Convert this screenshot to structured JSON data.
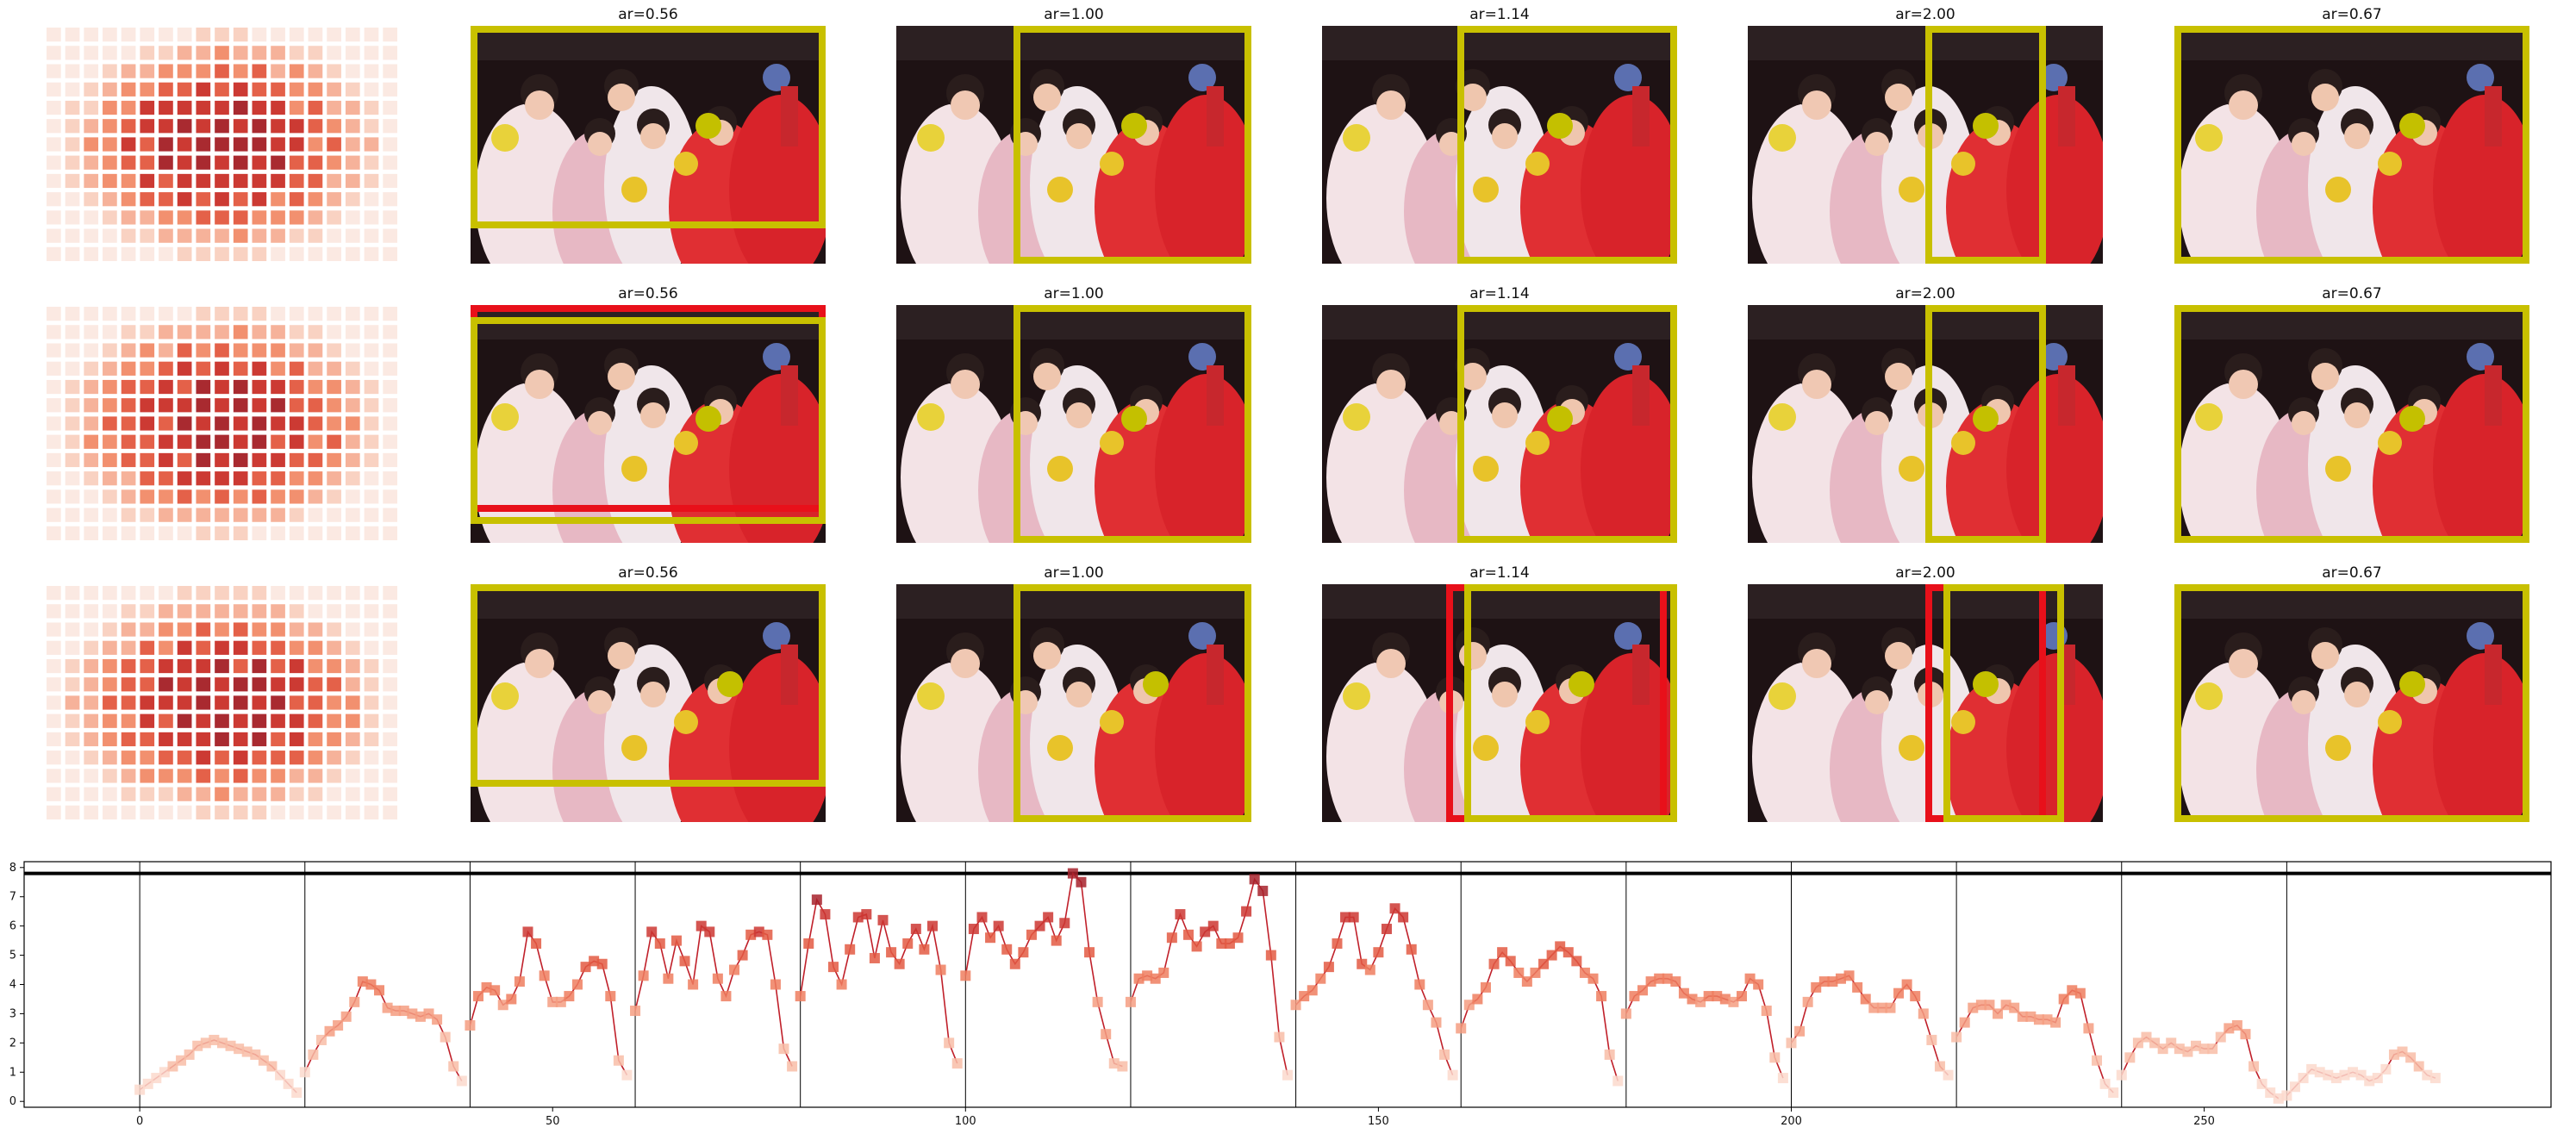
{
  "colors": {
    "crop_frame": "#c8c000",
    "crop_alt": "#e8101a",
    "focus_point": "#c4c000",
    "line": "#c0202a"
  },
  "grid": {
    "rows": [
      {
        "panels": [
          {
            "title": "ar=0.56",
            "crop": [
              0.0,
              0.0,
              1.0,
              0.85
            ],
            "alt": null,
            "dot": [
              0.67,
              0.42
            ]
          },
          {
            "title": "ar=1.00",
            "crop": [
              0.33,
              0.0,
              1.0,
              1.0
            ],
            "alt": null,
            "dot": [
              0.67,
              0.42
            ]
          },
          {
            "title": "ar=1.14",
            "crop": [
              0.38,
              0.0,
              1.0,
              1.0
            ],
            "alt": null,
            "dot": [
              0.67,
              0.42
            ]
          },
          {
            "title": "ar=2.00",
            "crop": [
              0.5,
              0.0,
              0.84,
              1.0
            ],
            "alt": null,
            "dot": [
              0.67,
              0.42
            ]
          },
          {
            "title": "ar=0.67",
            "crop": [
              0.0,
              0.0,
              1.0,
              1.0
            ],
            "alt": null,
            "dot": [
              0.67,
              0.42
            ]
          }
        ]
      },
      {
        "panels": [
          {
            "title": "ar=0.56",
            "crop": [
              0.0,
              0.05,
              1.0,
              0.92
            ],
            "alt": [
              0.0,
              0.0,
              1.0,
              0.87
            ],
            "dot": [
              0.67,
              0.48
            ]
          },
          {
            "title": "ar=1.00",
            "crop": [
              0.33,
              0.0,
              1.0,
              1.0
            ],
            "alt": null,
            "dot": [
              0.67,
              0.48
            ]
          },
          {
            "title": "ar=1.14",
            "crop": [
              0.38,
              0.0,
              1.0,
              1.0
            ],
            "alt": null,
            "dot": [
              0.67,
              0.48
            ]
          },
          {
            "title": "ar=2.00",
            "crop": [
              0.5,
              0.0,
              0.84,
              1.0
            ],
            "alt": null,
            "dot": [
              0.67,
              0.48
            ]
          },
          {
            "title": "ar=0.67",
            "crop": [
              0.0,
              0.0,
              1.0,
              1.0
            ],
            "alt": null,
            "dot": [
              0.67,
              0.48
            ]
          }
        ]
      },
      {
        "panels": [
          {
            "title": "ar=0.56",
            "crop": [
              0.0,
              0.0,
              1.0,
              0.85
            ],
            "alt": null,
            "dot": [
              0.73,
              0.42
            ]
          },
          {
            "title": "ar=1.00",
            "crop": [
              0.33,
              0.0,
              1.0,
              1.0
            ],
            "alt": null,
            "dot": [
              0.73,
              0.42
            ]
          },
          {
            "title": "ar=1.14",
            "crop": [
              0.4,
              0.0,
              1.0,
              1.0
            ],
            "alt": [
              0.35,
              0.0,
              0.97,
              1.0
            ],
            "dot": [
              0.73,
              0.42
            ]
          },
          {
            "title": "ar=2.00",
            "crop": [
              0.55,
              0.0,
              0.89,
              1.0
            ],
            "alt": [
              0.5,
              0.0,
              0.84,
              1.0
            ],
            "dot": [
              0.67,
              0.42
            ]
          },
          {
            "title": "ar=0.67",
            "crop": [
              0.0,
              0.0,
              1.0,
              1.0
            ],
            "alt": null,
            "dot": [
              0.67,
              0.42
            ]
          }
        ]
      }
    ]
  },
  "chart_data": {
    "type": "line",
    "xlim": [
      -14,
      292
    ],
    "ylim": [
      -0.2,
      8.2
    ],
    "xticks": [
      0,
      50,
      100,
      150,
      200,
      250
    ],
    "yticks": [
      0,
      1,
      2,
      3,
      4,
      5,
      6,
      7,
      8
    ],
    "threshold": 7.8,
    "segment_boundaries": [
      0,
      20,
      40,
      60,
      80,
      100,
      120,
      140,
      160,
      180,
      200,
      220,
      240,
      260
    ],
    "x_start": 0,
    "values": [
      0.4,
      0.6,
      0.8,
      1.0,
      1.2,
      1.4,
      1.6,
      1.9,
      2.0,
      2.1,
      2.0,
      1.9,
      1.8,
      1.7,
      1.6,
      1.4,
      1.2,
      0.9,
      0.6,
      0.3,
      1.0,
      1.6,
      2.1,
      2.4,
      2.6,
      2.9,
      3.4,
      4.1,
      4.0,
      3.8,
      3.2,
      3.1,
      3.1,
      3.0,
      2.9,
      3.0,
      2.8,
      2.2,
      1.2,
      0.7,
      2.6,
      3.6,
      3.9,
      3.8,
      3.3,
      3.5,
      4.1,
      5.8,
      5.4,
      4.3,
      3.4,
      3.4,
      3.6,
      4.0,
      4.6,
      4.8,
      4.7,
      3.6,
      1.4,
      0.9,
      3.1,
      4.3,
      5.8,
      5.4,
      4.2,
      5.5,
      4.8,
      4.0,
      6.0,
      5.8,
      4.2,
      3.6,
      4.5,
      5.0,
      5.7,
      5.8,
      5.7,
      4.0,
      1.8,
      1.2,
      3.6,
      5.4,
      6.9,
      6.4,
      4.6,
      4.0,
      5.2,
      6.3,
      6.4,
      4.9,
      6.2,
      5.1,
      4.7,
      5.4,
      5.9,
      5.2,
      6.0,
      4.5,
      2.0,
      1.3,
      4.3,
      5.9,
      6.3,
      5.6,
      6.0,
      5.2,
      4.7,
      5.1,
      5.7,
      6.0,
      6.3,
      5.5,
      6.1,
      7.8,
      7.5,
      5.1,
      3.4,
      2.3,
      1.3,
      1.2,
      3.4,
      4.2,
      4.3,
      4.2,
      4.4,
      5.6,
      6.4,
      5.7,
      5.3,
      5.8,
      6.0,
      5.4,
      5.4,
      5.6,
      6.5,
      7.6,
      7.2,
      5.0,
      2.2,
      0.9,
      3.3,
      3.6,
      3.8,
      4.2,
      4.6,
      5.4,
      6.3,
      6.3,
      4.7,
      4.5,
      5.1,
      5.9,
      6.6,
      6.3,
      5.2,
      4.0,
      3.3,
      2.7,
      1.6,
      0.9,
      2.5,
      3.3,
      3.5,
      3.9,
      4.7,
      5.1,
      4.8,
      4.4,
      4.1,
      4.4,
      4.7,
      5.0,
      5.3,
      5.1,
      4.8,
      4.4,
      4.2,
      3.6,
      1.6,
      0.7,
      3.0,
      3.6,
      3.8,
      4.1,
      4.2,
      4.2,
      4.1,
      3.7,
      3.5,
      3.4,
      3.6,
      3.6,
      3.5,
      3.4,
      3.6,
      4.2,
      4.0,
      3.1,
      1.5,
      0.8,
      2.0,
      2.4,
      3.4,
      3.9,
      4.1,
      4.1,
      4.2,
      4.3,
      3.9,
      3.5,
      3.2,
      3.2,
      3.2,
      3.7,
      4.0,
      3.6,
      3.0,
      2.1,
      1.2,
      0.9,
      2.2,
      2.7,
      3.2,
      3.3,
      3.3,
      3.0,
      3.3,
      3.2,
      2.9,
      2.9,
      2.8,
      2.8,
      2.7,
      3.5,
      3.8,
      3.7,
      2.5,
      1.4,
      0.6,
      0.3,
      0.9,
      1.5,
      2.0,
      2.2,
      2.0,
      1.8,
      2.0,
      1.8,
      1.7,
      1.9,
      1.8,
      1.8,
      2.2,
      2.5,
      2.6,
      2.3,
      1.2,
      0.6,
      0.3,
      0.1,
      0.2,
      0.5,
      0.8,
      1.1,
      1.0,
      0.9,
      0.8,
      0.9,
      1.0,
      0.9,
      0.7,
      0.8,
      1.1,
      1.6,
      1.7,
      1.5,
      1.2,
      0.9,
      0.8
    ]
  }
}
